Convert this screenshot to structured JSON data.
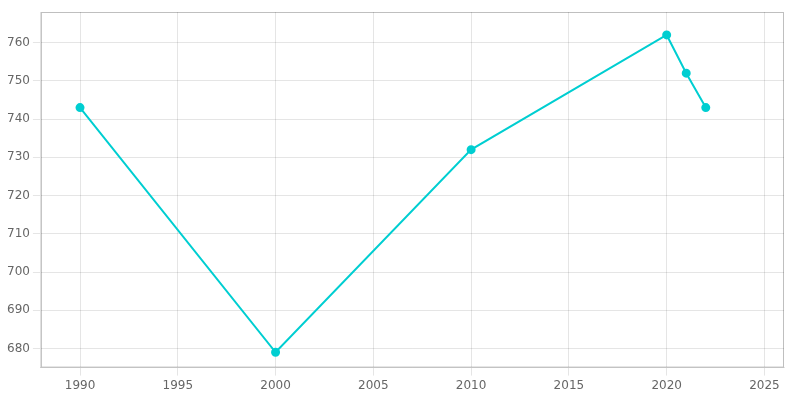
{
  "chart_data": {
    "type": "line",
    "x": [
      1990,
      2000,
      2010,
      2020,
      2021,
      2022
    ],
    "values": [
      743,
      679,
      732,
      762,
      752,
      743
    ],
    "color": "#00CED1",
    "marker": "circle",
    "xlim": [
      1988,
      2026
    ],
    "ylim": [
      675,
      768
    ],
    "xticks": [
      1990,
      1995,
      2000,
      2005,
      2010,
      2015,
      2020,
      2025
    ],
    "yticks": [
      680,
      690,
      700,
      710,
      720,
      730,
      740,
      750,
      760
    ],
    "grid": true
  }
}
